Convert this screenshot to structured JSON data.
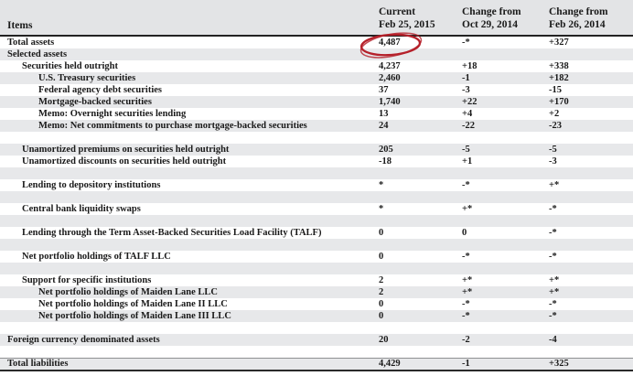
{
  "colors": {
    "header_bg": "#e3e4e6",
    "stripe_bg": "#e7e8ea",
    "border_dark": "#222222",
    "annotation_red": "#b5202a"
  },
  "table": {
    "items_header": "Items",
    "columns": [
      {
        "line1": "Current",
        "line2": "Feb 25, 2015"
      },
      {
        "line1": "Change from",
        "line2": "Oct 29, 2014"
      },
      {
        "line1": "Change from",
        "line2": "Feb 26, 2014"
      }
    ],
    "rows": [
      {
        "label": "Total assets",
        "indent": 0,
        "values": [
          "4,487",
          "-*",
          "+327"
        ],
        "shaded": false
      },
      {
        "label": "Selected assets",
        "indent": 0,
        "values": [
          "",
          "",
          ""
        ],
        "shaded": true
      },
      {
        "label": "Securities held outright",
        "indent": 1,
        "values": [
          "4,237",
          "+18",
          "+338"
        ],
        "shaded": false
      },
      {
        "label": "U.S. Treasury securities",
        "indent": 2,
        "values": [
          "2,460",
          "-1",
          "+182"
        ],
        "shaded": true
      },
      {
        "label": "Federal agency debt securities",
        "indent": 2,
        "values": [
          "37",
          "-3",
          "-15"
        ],
        "shaded": false
      },
      {
        "label": "Mortgage-backed securities",
        "indent": 2,
        "values": [
          "1,740",
          "+22",
          "+170"
        ],
        "shaded": true
      },
      {
        "label": "Memo: Overnight securities lending",
        "indent": 2,
        "values": [
          "13",
          "+4",
          "+2"
        ],
        "shaded": false
      },
      {
        "label": "Memo: Net commitments to purchase mortgage-backed securities",
        "indent": 2,
        "values": [
          "24",
          "-22",
          "-23"
        ],
        "shaded": true
      },
      {
        "label": "",
        "indent": 0,
        "values": [
          "",
          "",
          ""
        ],
        "shaded": false
      },
      {
        "label": "Unamortized premiums on securities held outright",
        "indent": 1,
        "values": [
          "205",
          "-5",
          "-5"
        ],
        "shaded": true
      },
      {
        "label": "Unamortized discounts on securities held outright",
        "indent": 1,
        "values": [
          "-18",
          "+1",
          "-3"
        ],
        "shaded": false
      },
      {
        "label": "",
        "indent": 0,
        "values": [
          "",
          "",
          ""
        ],
        "shaded": true
      },
      {
        "label": "Lending to depository institutions",
        "indent": 1,
        "values": [
          "*",
          "-*",
          "+*"
        ],
        "shaded": false
      },
      {
        "label": "",
        "indent": 0,
        "values": [
          "",
          "",
          ""
        ],
        "shaded": true
      },
      {
        "label": "Central bank liquidity swaps",
        "indent": 1,
        "values": [
          "*",
          "+*",
          "-*"
        ],
        "shaded": false
      },
      {
        "label": "",
        "indent": 0,
        "values": [
          "",
          "",
          ""
        ],
        "shaded": true
      },
      {
        "label": "Lending through the Term Asset-Backed Securities Load Facility (TALF)",
        "indent": 1,
        "values": [
          "0",
          "0",
          "-*"
        ],
        "shaded": false
      },
      {
        "label": "",
        "indent": 0,
        "values": [
          "",
          "",
          ""
        ],
        "shaded": true
      },
      {
        "label": "Net portfolio holdings of TALF LLC",
        "indent": 1,
        "values": [
          "0",
          "-*",
          "-*"
        ],
        "shaded": false
      },
      {
        "label": "",
        "indent": 0,
        "values": [
          "",
          "",
          ""
        ],
        "shaded": true
      },
      {
        "label": "Support for specific institutions",
        "indent": 1,
        "values": [
          "2",
          "+*",
          "+*"
        ],
        "shaded": false
      },
      {
        "label": "Net portfolio holdings of Maiden Lane LLC",
        "indent": 2,
        "values": [
          "2",
          "+*",
          "+*"
        ],
        "shaded": true
      },
      {
        "label": "Net portfolio holdings of Maiden Lane II LLC",
        "indent": 2,
        "values": [
          "0",
          "-*",
          "-*"
        ],
        "shaded": false
      },
      {
        "label": "Net portfolio holdings of Maiden Lane III LLC",
        "indent": 2,
        "values": [
          "0",
          "-*",
          "-*"
        ],
        "shaded": true
      },
      {
        "label": "",
        "indent": 0,
        "values": [
          "",
          "",
          ""
        ],
        "shaded": false
      },
      {
        "label": "Foreign currency denominated assets",
        "indent": 0,
        "values": [
          "20",
          "-2",
          "-4"
        ],
        "shaded": true
      },
      {
        "label": "",
        "indent": 0,
        "values": [
          "",
          "",
          ""
        ],
        "shaded": false
      },
      {
        "label": "Total liabilities",
        "indent": 0,
        "values": [
          "4,429",
          "-1",
          "+325"
        ],
        "shaded": true,
        "rule_top": true
      }
    ]
  },
  "annotation": {
    "shape": "hand-drawn-ellipse",
    "around_value": "4,487",
    "color": "#b5202a"
  }
}
